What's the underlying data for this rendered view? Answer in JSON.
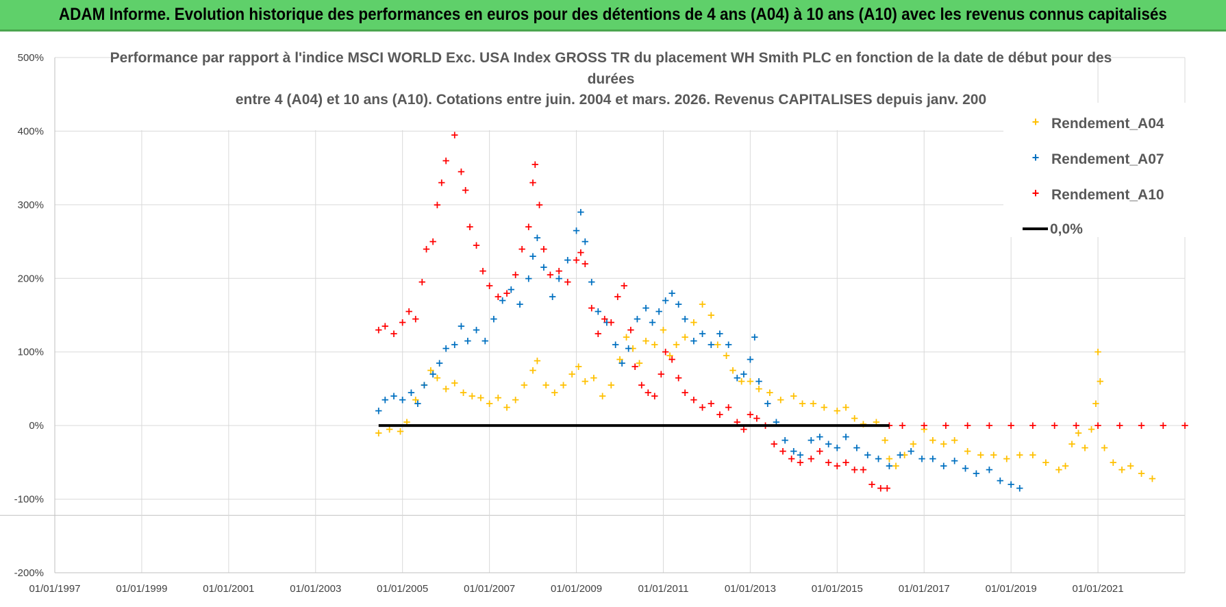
{
  "banner": {
    "title": "ADAM Informe. Evolution historique des performances en euros pour des détentions de 4 ans (A04) à 10 ans (A10) avec les revenus connus capitalisés",
    "color": "#5fd06a"
  },
  "chart_data": {
    "type": "scatter",
    "title_lines": [
      "Performance par rapport à l'indice MSCI WORLD Exc. USA Index GROSS TR  du placement WH Smith PLC en fonction de la date de début pour des",
      "durées",
      "entre 4 (A04) et 10 ans (A10). Cotations entre juin. 2004 et mars. 2026. Revenus CAPITALISES depuis janv. 200"
    ],
    "x_tick_labels": [
      "01/01/1997",
      "01/01/1999",
      "01/01/2001",
      "01/01/2003",
      "01/01/2005",
      "01/01/2007",
      "01/01/2009",
      "01/01/2011",
      "01/01/2013",
      "01/01/2015",
      "01/01/2017",
      "01/01/2019",
      "01/01/2021"
    ],
    "xlim": [
      1997.0,
      2023.0
    ],
    "y_tick_labels": [
      "500%",
      "400%",
      "300%",
      "200%",
      "100%",
      "0%",
      "-100%",
      "-200%"
    ],
    "y_ticks": [
      500,
      400,
      300,
      200,
      100,
      0,
      -100,
      -200
    ],
    "ylim": [
      -200,
      500
    ],
    "grid": true,
    "legend_position": "top-right",
    "series": [
      {
        "name": "Rendement_A04",
        "color": "#ffc000",
        "marker": "+",
        "points": [
          [
            2004.45,
            -10
          ],
          [
            2004.7,
            -5
          ],
          [
            2004.95,
            -8
          ],
          [
            2005.1,
            5
          ],
          [
            2005.3,
            35
          ],
          [
            2005.5,
            55
          ],
          [
            2005.65,
            75
          ],
          [
            2005.8,
            65
          ],
          [
            2006.0,
            50
          ],
          [
            2006.2,
            58
          ],
          [
            2006.4,
            45
          ],
          [
            2006.6,
            40
          ],
          [
            2006.8,
            38
          ],
          [
            2007.0,
            30
          ],
          [
            2007.2,
            38
          ],
          [
            2007.4,
            25
          ],
          [
            2007.6,
            35
          ],
          [
            2007.8,
            55
          ],
          [
            2008.0,
            75
          ],
          [
            2008.1,
            88
          ],
          [
            2008.3,
            55
          ],
          [
            2008.5,
            45
          ],
          [
            2008.7,
            55
          ],
          [
            2008.9,
            70
          ],
          [
            2009.05,
            80
          ],
          [
            2009.2,
            60
          ],
          [
            2009.4,
            65
          ],
          [
            2009.6,
            40
          ],
          [
            2009.8,
            55
          ],
          [
            2010.0,
            90
          ],
          [
            2010.15,
            120
          ],
          [
            2010.3,
            105
          ],
          [
            2010.45,
            85
          ],
          [
            2010.6,
            115
          ],
          [
            2010.8,
            110
          ],
          [
            2011.0,
            130
          ],
          [
            2011.15,
            95
          ],
          [
            2011.3,
            110
          ],
          [
            2011.5,
            120
          ],
          [
            2011.7,
            140
          ],
          [
            2011.9,
            165
          ],
          [
            2012.1,
            150
          ],
          [
            2012.25,
            110
          ],
          [
            2012.45,
            95
          ],
          [
            2012.6,
            75
          ],
          [
            2012.8,
            60
          ],
          [
            2013.0,
            60
          ],
          [
            2013.2,
            50
          ],
          [
            2013.45,
            45
          ],
          [
            2013.7,
            35
          ],
          [
            2014.0,
            40
          ],
          [
            2014.2,
            30
          ],
          [
            2014.45,
            30
          ],
          [
            2014.7,
            25
          ],
          [
            2015.0,
            20
          ],
          [
            2015.2,
            25
          ],
          [
            2015.4,
            10
          ],
          [
            2015.6,
            2
          ],
          [
            2015.9,
            5
          ],
          [
            2016.1,
            -20
          ],
          [
            2016.2,
            -45
          ],
          [
            2016.35,
            -55
          ],
          [
            2016.55,
            -40
          ],
          [
            2016.75,
            -25
          ],
          [
            2017.0,
            -5
          ],
          [
            2017.2,
            -20
          ],
          [
            2017.45,
            -25
          ],
          [
            2017.7,
            -20
          ],
          [
            2018.0,
            -35
          ],
          [
            2018.3,
            -40
          ],
          [
            2018.6,
            -40
          ],
          [
            2018.9,
            -45
          ],
          [
            2019.2,
            -40
          ],
          [
            2019.5,
            -40
          ],
          [
            2019.8,
            -50
          ],
          [
            2020.1,
            -60
          ],
          [
            2020.25,
            -55
          ],
          [
            2020.4,
            -25
          ],
          [
            2020.55,
            -10
          ],
          [
            2020.7,
            -30
          ],
          [
            2020.85,
            -5
          ],
          [
            2020.95,
            30
          ],
          [
            2021.0,
            100
          ],
          [
            2021.05,
            60
          ],
          [
            2021.15,
            -30
          ],
          [
            2021.35,
            -50
          ],
          [
            2021.55,
            -60
          ],
          [
            2021.75,
            -55
          ],
          [
            2022.0,
            -65
          ],
          [
            2022.25,
            -72
          ]
        ]
      },
      {
        "name": "Rendement_A07",
        "color": "#0070c0",
        "marker": "+",
        "points": [
          [
            2004.45,
            20
          ],
          [
            2004.6,
            35
          ],
          [
            2004.8,
            40
          ],
          [
            2005.0,
            35
          ],
          [
            2005.2,
            45
          ],
          [
            2005.35,
            30
          ],
          [
            2005.5,
            55
          ],
          [
            2005.7,
            70
          ],
          [
            2005.85,
            85
          ],
          [
            2006.0,
            105
          ],
          [
            2006.2,
            110
          ],
          [
            2006.35,
            135
          ],
          [
            2006.5,
            115
          ],
          [
            2006.7,
            130
          ],
          [
            2006.9,
            115
          ],
          [
            2007.1,
            145
          ],
          [
            2007.3,
            170
          ],
          [
            2007.5,
            185
          ],
          [
            2007.7,
            165
          ],
          [
            2007.9,
            200
          ],
          [
            2008.0,
            230
          ],
          [
            2008.1,
            255
          ],
          [
            2008.25,
            215
          ],
          [
            2008.45,
            175
          ],
          [
            2008.6,
            200
          ],
          [
            2008.8,
            225
          ],
          [
            2009.0,
            265
          ],
          [
            2009.1,
            290
          ],
          [
            2009.2,
            250
          ],
          [
            2009.35,
            195
          ],
          [
            2009.5,
            155
          ],
          [
            2009.7,
            140
          ],
          [
            2009.9,
            110
          ],
          [
            2010.05,
            85
          ],
          [
            2010.2,
            105
          ],
          [
            2010.4,
            145
          ],
          [
            2010.6,
            160
          ],
          [
            2010.75,
            140
          ],
          [
            2010.9,
            155
          ],
          [
            2011.05,
            170
          ],
          [
            2011.2,
            180
          ],
          [
            2011.35,
            165
          ],
          [
            2011.5,
            145
          ],
          [
            2011.7,
            115
          ],
          [
            2011.9,
            125
          ],
          [
            2012.1,
            110
          ],
          [
            2012.3,
            125
          ],
          [
            2012.5,
            110
          ],
          [
            2012.7,
            65
          ],
          [
            2012.85,
            70
          ],
          [
            2013.0,
            90
          ],
          [
            2013.1,
            120
          ],
          [
            2013.2,
            60
          ],
          [
            2013.4,
            30
          ],
          [
            2013.6,
            5
          ],
          [
            2013.8,
            -20
          ],
          [
            2014.0,
            -35
          ],
          [
            2014.15,
            -40
          ],
          [
            2014.4,
            -20
          ],
          [
            2014.6,
            -15
          ],
          [
            2014.8,
            -25
          ],
          [
            2015.0,
            -30
          ],
          [
            2015.2,
            -15
          ],
          [
            2015.45,
            -30
          ],
          [
            2015.7,
            -40
          ],
          [
            2015.95,
            -45
          ],
          [
            2016.2,
            -55
          ],
          [
            2016.45,
            -40
          ],
          [
            2016.7,
            -35
          ],
          [
            2016.95,
            -45
          ],
          [
            2017.2,
            -45
          ],
          [
            2017.45,
            -55
          ],
          [
            2017.7,
            -48
          ],
          [
            2017.95,
            -58
          ],
          [
            2018.2,
            -65
          ],
          [
            2018.5,
            -60
          ],
          [
            2018.75,
            -75
          ],
          [
            2019.0,
            -80
          ],
          [
            2019.2,
            -85
          ]
        ]
      },
      {
        "name": "Rendement_A10",
        "color": "#ff0000",
        "marker": "+",
        "points": [
          [
            2004.45,
            130
          ],
          [
            2004.6,
            135
          ],
          [
            2004.8,
            125
          ],
          [
            2005.0,
            140
          ],
          [
            2005.15,
            155
          ],
          [
            2005.3,
            145
          ],
          [
            2005.45,
            195
          ],
          [
            2005.55,
            240
          ],
          [
            2005.7,
            250
          ],
          [
            2005.8,
            300
          ],
          [
            2005.9,
            330
          ],
          [
            2006.0,
            360
          ],
          [
            2006.1,
            410
          ],
          [
            2006.2,
            395
          ],
          [
            2006.35,
            345
          ],
          [
            2006.45,
            320
          ],
          [
            2006.55,
            270
          ],
          [
            2006.7,
            245
          ],
          [
            2006.85,
            210
          ],
          [
            2007.0,
            190
          ],
          [
            2007.2,
            175
          ],
          [
            2007.4,
            180
          ],
          [
            2007.6,
            205
          ],
          [
            2007.75,
            240
          ],
          [
            2007.9,
            270
          ],
          [
            2008.0,
            330
          ],
          [
            2008.05,
            355
          ],
          [
            2008.15,
            300
          ],
          [
            2008.25,
            240
          ],
          [
            2008.4,
            205
          ],
          [
            2008.6,
            210
          ],
          [
            2008.8,
            195
          ],
          [
            2009.0,
            225
          ],
          [
            2009.1,
            235
          ],
          [
            2009.2,
            220
          ],
          [
            2009.35,
            160
          ],
          [
            2009.5,
            125
          ],
          [
            2009.65,
            145
          ],
          [
            2009.8,
            140
          ],
          [
            2009.95,
            175
          ],
          [
            2010.1,
            190
          ],
          [
            2010.25,
            130
          ],
          [
            2010.35,
            80
          ],
          [
            2010.5,
            55
          ],
          [
            2010.65,
            45
          ],
          [
            2010.8,
            40
          ],
          [
            2010.95,
            70
          ],
          [
            2011.05,
            100
          ],
          [
            2011.2,
            90
          ],
          [
            2011.35,
            65
          ],
          [
            2011.5,
            45
          ],
          [
            2011.7,
            35
          ],
          [
            2011.9,
            25
          ],
          [
            2012.1,
            30
          ],
          [
            2012.3,
            15
          ],
          [
            2012.5,
            25
          ],
          [
            2012.7,
            5
          ],
          [
            2012.85,
            -5
          ],
          [
            2013.0,
            15
          ],
          [
            2013.15,
            10
          ],
          [
            2013.35,
            0
          ],
          [
            2013.55,
            -25
          ],
          [
            2013.75,
            -35
          ],
          [
            2013.95,
            -45
          ],
          [
            2014.15,
            -50
          ],
          [
            2014.4,
            -45
          ],
          [
            2014.6,
            -35
          ],
          [
            2014.8,
            -50
          ],
          [
            2015.0,
            -55
          ],
          [
            2015.2,
            -50
          ],
          [
            2015.4,
            -60
          ],
          [
            2015.6,
            -60
          ],
          [
            2015.8,
            -80
          ],
          [
            2016.0,
            -85
          ],
          [
            2016.15,
            -85
          ],
          [
            2016.2,
            0
          ],
          [
            2016.5,
            0
          ],
          [
            2017.0,
            0
          ],
          [
            2017.5,
            0
          ],
          [
            2018.0,
            0
          ],
          [
            2018.5,
            0
          ],
          [
            2019.0,
            0
          ],
          [
            2019.5,
            0
          ],
          [
            2020.0,
            0
          ],
          [
            2020.5,
            0
          ],
          [
            2021.0,
            0
          ],
          [
            2021.5,
            0
          ],
          [
            2022.0,
            0
          ],
          [
            2022.5,
            0
          ],
          [
            2023.0,
            0
          ]
        ]
      },
      {
        "name": "0,0%",
        "color": "#000000",
        "marker": "line",
        "points": [
          [
            2004.45,
            0
          ],
          [
            2016.2,
            0
          ]
        ]
      }
    ]
  }
}
